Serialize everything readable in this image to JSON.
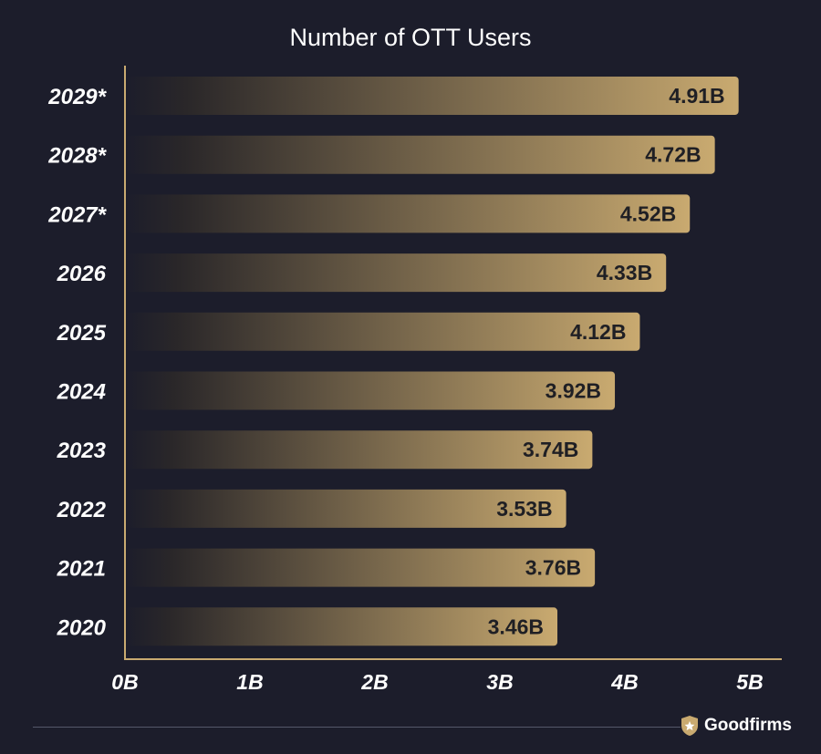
{
  "chart_data": {
    "type": "bar",
    "orientation": "horizontal",
    "title": "Number of OTT Users",
    "categories": [
      "2029*",
      "2028*",
      "2027*",
      "2026",
      "2025",
      "2024",
      "2023",
      "2022",
      "2021",
      "2020"
    ],
    "values": [
      4.91,
      4.72,
      4.52,
      4.33,
      4.12,
      3.92,
      3.74,
      3.53,
      3.76,
      3.46
    ],
    "value_labels": [
      "4.91B",
      "4.72B",
      "4.52B",
      "4.33B",
      "4.12B",
      "3.92B",
      "3.74B",
      "3.53B",
      "3.76B",
      "3.46B"
    ],
    "x_ticks": [
      "0B",
      "1B",
      "2B",
      "3B",
      "4B",
      "5B"
    ],
    "xlim": [
      0,
      5
    ],
    "xlabel": "",
    "ylabel": "",
    "grid": false,
    "legend": "none",
    "colors": {
      "background": "#1c1d2b",
      "bar_start": "#1c1d2b",
      "bar_end": "#c9aa70",
      "axis": "#c9aa70",
      "text": "#ffffff",
      "data_label": "#1f1f24"
    }
  },
  "brand": {
    "name": "Goodfirms",
    "icon": "shield-star-icon"
  }
}
